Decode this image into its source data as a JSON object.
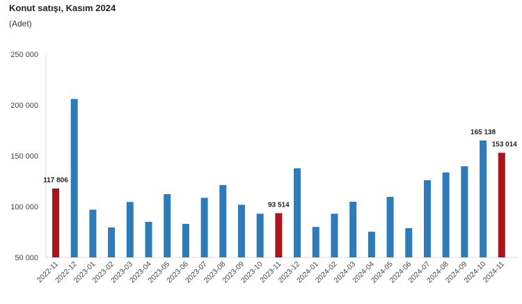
{
  "chart_data": {
    "type": "bar",
    "title": "Konut satışı, Kasım 2024",
    "subtitle": "(Adet)",
    "xlabel": "",
    "ylabel": "",
    "ylim": [
      50000,
      250000
    ],
    "yticks": [
      50000,
      100000,
      150000,
      200000,
      250000
    ],
    "ytick_labels": [
      "50 000",
      "100 000",
      "150 000",
      "200 000",
      "250 000"
    ],
    "grid": false,
    "categories": [
      "2022-11",
      "2022-12",
      "2023-01",
      "2023-02",
      "2023-03",
      "2023-04",
      "2023-05",
      "2023-06",
      "2023-07",
      "2023-08",
      "2023-09",
      "2023-10",
      "2023-11",
      "2023-12",
      "2024-01",
      "2024-02",
      "2024-03",
      "2024-04",
      "2024-05",
      "2024-06",
      "2024-07",
      "2024-08",
      "2024-09",
      "2024-10",
      "2024-11"
    ],
    "values": [
      117806,
      206000,
      97000,
      79500,
      104600,
      85000,
      112300,
      83000,
      108700,
      121200,
      101800,
      93000,
      93514,
      137700,
      80000,
      93000,
      104800,
      75300,
      109600,
      78800,
      126000,
      133600,
      139700,
      165138,
      153014
    ],
    "highlighted": [
      "2022-11",
      "2023-11",
      "2024-11"
    ],
    "data_labels": {
      "2022-11": "117 806",
      "2023-11": "93 514",
      "2024-10": "165 138",
      "2024-11": "153 014"
    },
    "colors": {
      "default": "#2e7bb9",
      "highlight": "#a8151c"
    }
  }
}
